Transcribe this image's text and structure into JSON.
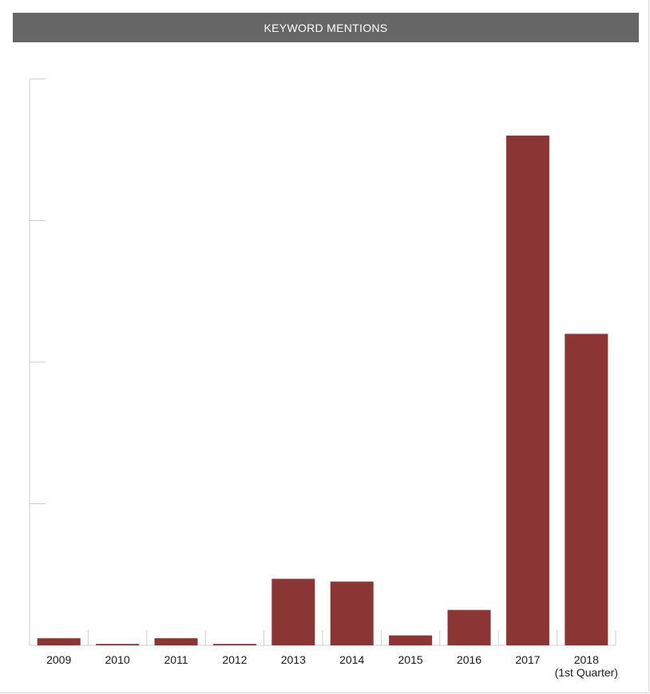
{
  "chart_data": {
    "type": "bar",
    "title": "KEYWORD MENTIONS",
    "categories": [
      "2009",
      "2010",
      "2011",
      "2012",
      "2013",
      "2014",
      "2015",
      "2016",
      "2017",
      "2018"
    ],
    "category_sublabels": [
      "",
      "",
      "",
      "",
      "",
      "",
      "",
      "",
      "",
      "(1st Quarter)"
    ],
    "values": [
      0.5,
      0.1,
      0.5,
      0.1,
      4.7,
      4.5,
      0.7,
      2.5,
      36.0,
      22.0
    ],
    "ylim": [
      0,
      40
    ],
    "y_ticks": [
      0,
      10,
      20,
      30,
      40
    ],
    "y_tick_labels_shown": false,
    "xlabel": "",
    "ylabel": "",
    "colors": {
      "bar": "#8b3535",
      "title_bar": "#666666",
      "title_text": "#ffffff",
      "axis": "#cccccc"
    }
  }
}
